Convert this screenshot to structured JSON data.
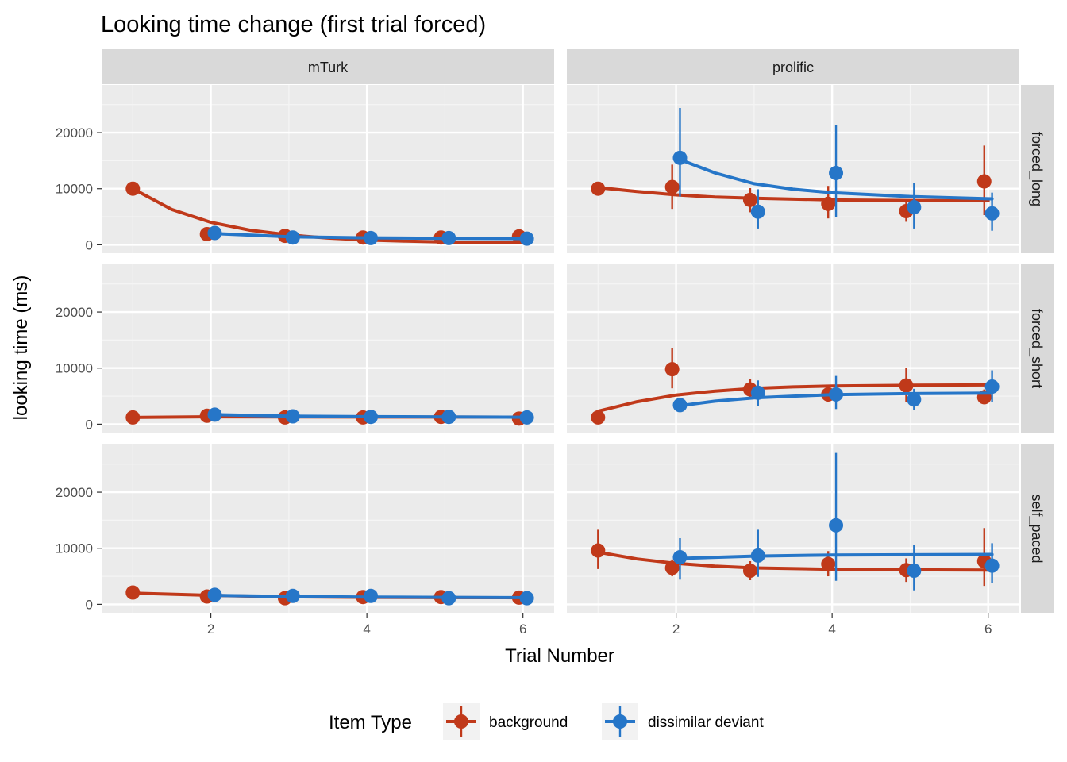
{
  "chart_data": {
    "type": "scatter",
    "title": "Looking time change (first trial forced)",
    "xlabel": "Trial Number",
    "ylabel": "looking time (ms)",
    "xlim": [
      0.6,
      6.4
    ],
    "ylim": [
      -1500,
      28500
    ],
    "x_ticks": [
      2,
      4,
      6
    ],
    "y_ticks": [
      0,
      10000,
      20000
    ],
    "grid": true,
    "legend": {
      "title": "Item Type",
      "position": "bottom",
      "entries": [
        "background",
        "dissimilar deviant"
      ]
    },
    "series_colors": {
      "background": "#C0391A",
      "dissimilar deviant": "#2676C8"
    },
    "col_facets": [
      "mTurk",
      "prolific"
    ],
    "row_facets": [
      "forced_long",
      "forced_short",
      "self_paced"
    ],
    "panels": [
      {
        "col": "mTurk",
        "row": "forced_long",
        "series": [
          {
            "name": "background",
            "x": [
              1,
              1.95,
              2.95,
              3.95,
              4.95,
              5.95
            ],
            "y": [
              10000,
              1900,
              1600,
              1300,
              1300,
              1500
            ],
            "lo": [
              10000,
              1700,
              1400,
              1100,
              1100,
              1300
            ],
            "hi": [
              10000,
              2100,
              1800,
              1500,
              1500,
              1700
            ],
            "curve": [
              [
                1,
                10000
              ],
              [
                1.5,
                6300
              ],
              [
                2,
                4000
              ],
              [
                2.5,
                2600
              ],
              [
                3,
                1750
              ],
              [
                3.5,
                1200
              ],
              [
                4,
                850
              ],
              [
                4.5,
                650
              ],
              [
                5,
                500
              ],
              [
                5.5,
                420
              ],
              [
                6,
                370
              ]
            ]
          },
          {
            "name": "dissimilar deviant",
            "x": [
              2.05,
              3.05,
              4.05,
              5.05,
              6.05
            ],
            "y": [
              2100,
              1300,
              1200,
              1200,
              1100
            ],
            "lo": [
              1900,
              1100,
              1000,
              1000,
              900
            ],
            "hi": [
              2300,
              1500,
              1400,
              1400,
              1300
            ],
            "curve": [
              [
                2.05,
                2000
              ],
              [
                3,
                1450
              ],
              [
                4,
                1250
              ],
              [
                5,
                1150
              ],
              [
                6.05,
                1100
              ]
            ]
          }
        ]
      },
      {
        "col": "prolific",
        "row": "forced_long",
        "series": [
          {
            "name": "background",
            "x": [
              1,
              1.95,
              2.95,
              3.95,
              4.95,
              5.95
            ],
            "y": [
              10000,
              10300,
              8000,
              7300,
              6000,
              11300
            ],
            "lo": [
              10000,
              6400,
              5800,
              4700,
              4100,
              5300
            ],
            "hi": [
              10000,
              14300,
              10100,
              10500,
              7600,
              17700
            ],
            "curve": [
              [
                1,
                10200
              ],
              [
                1.5,
                9500
              ],
              [
                2,
                8900
              ],
              [
                2.5,
                8500
              ],
              [
                3,
                8300
              ],
              [
                4,
                8000
              ],
              [
                5,
                7900
              ],
              [
                6,
                7850
              ]
            ]
          },
          {
            "name": "dissimilar deviant",
            "x": [
              2.05,
              3.05,
              4.05,
              5.05,
              6.05
            ],
            "y": [
              15500,
              5900,
              12800,
              6700,
              5600
            ],
            "lo": [
              8600,
              2900,
              4900,
              2900,
              2500
            ],
            "hi": [
              24400,
              9900,
              21400,
              11000,
              9300
            ],
            "curve": [
              [
                2.05,
                15200
              ],
              [
                2.5,
                12800
              ],
              [
                3,
                10900
              ],
              [
                3.5,
                9900
              ],
              [
                4,
                9300
              ],
              [
                5,
                8600
              ],
              [
                6.05,
                8200
              ]
            ]
          }
        ]
      },
      {
        "col": "mTurk",
        "row": "forced_short",
        "series": [
          {
            "name": "background",
            "x": [
              1,
              1.95,
              2.95,
              3.95,
              4.95,
              5.95
            ],
            "y": [
              1200,
              1500,
              1200,
              1200,
              1300,
              1000
            ],
            "lo": [
              1000,
              1300,
              1000,
              1000,
              1100,
              800
            ],
            "hi": [
              1400,
              1700,
              1400,
              1400,
              1500,
              1200
            ],
            "curve": [
              [
                1,
                1200
              ],
              [
                2,
                1320
              ],
              [
                3,
                1300
              ],
              [
                4,
                1280
              ],
              [
                5,
                1270
              ],
              [
                6,
                1260
              ]
            ]
          },
          {
            "name": "dissimilar deviant",
            "x": [
              2.05,
              3.05,
              4.05,
              5.05,
              6.05
            ],
            "y": [
              1700,
              1400,
              1300,
              1300,
              1200
            ],
            "lo": [
              1500,
              1200,
              1100,
              1100,
              1000
            ],
            "hi": [
              1900,
              1600,
              1500,
              1500,
              1400
            ],
            "curve": [
              [
                2.05,
                1700
              ],
              [
                3,
                1450
              ],
              [
                4,
                1350
              ],
              [
                5,
                1300
              ],
              [
                6.05,
                1250
              ]
            ]
          }
        ]
      },
      {
        "col": "prolific",
        "row": "forced_short",
        "series": [
          {
            "name": "background",
            "x": [
              1,
              1.95,
              2.95,
              3.95,
              4.95,
              5.95
            ],
            "y": [
              1200,
              9800,
              6200,
              5300,
              6900,
              4800
            ],
            "lo": [
              1200,
              6400,
              4500,
              4000,
              3900,
              3800
            ],
            "hi": [
              1200,
              13600,
              8000,
              6700,
              10100,
              6200
            ],
            "curve": [
              [
                1,
                2300
              ],
              [
                1.5,
                4000
              ],
              [
                2,
                5200
              ],
              [
                2.5,
                5900
              ],
              [
                3,
                6400
              ],
              [
                3.5,
                6650
              ],
              [
                4,
                6800
              ],
              [
                5,
                6950
              ],
              [
                6,
                7000
              ]
            ]
          },
          {
            "name": "dissimilar deviant",
            "x": [
              2.05,
              3.05,
              4.05,
              5.05,
              6.05
            ],
            "y": [
              3400,
              5600,
              5300,
              4400,
              6700
            ],
            "lo": [
              3400,
              3300,
              2700,
              2600,
              4000
            ],
            "hi": [
              3400,
              7800,
              8600,
              6300,
              9600
            ],
            "curve": [
              [
                2.05,
                3300
              ],
              [
                2.5,
                4100
              ],
              [
                3,
                4700
              ],
              [
                3.5,
                5000
              ],
              [
                4,
                5250
              ],
              [
                5,
                5450
              ],
              [
                6.05,
                5550
              ]
            ]
          }
        ]
      },
      {
        "col": "mTurk",
        "row": "self_paced",
        "series": [
          {
            "name": "background",
            "x": [
              1,
              1.95,
              2.95,
              3.95,
              4.95,
              5.95
            ],
            "y": [
              2100,
              1400,
              1100,
              1300,
              1300,
              1200
            ],
            "lo": [
              1900,
              1200,
              900,
              1100,
              1100,
              1000
            ],
            "hi": [
              2300,
              1600,
              1300,
              1500,
              1500,
              1400
            ],
            "curve": [
              [
                1,
                2000
              ],
              [
                2,
                1600
              ],
              [
                3,
                1350
              ],
              [
                4,
                1250
              ],
              [
                5,
                1200
              ],
              [
                6,
                1180
              ]
            ]
          },
          {
            "name": "dissimilar deviant",
            "x": [
              2.05,
              3.05,
              4.05,
              5.05,
              6.05
            ],
            "y": [
              1700,
              1500,
              1500,
              1100,
              1100
            ],
            "lo": [
              1500,
              1300,
              1300,
              900,
              900
            ],
            "hi": [
              1900,
              1700,
              1700,
              1300,
              1300
            ],
            "curve": [
              [
                2.05,
                1600
              ],
              [
                3,
                1400
              ],
              [
                4,
                1300
              ],
              [
                5,
                1250
              ],
              [
                6.05,
                1200
              ]
            ]
          }
        ]
      },
      {
        "col": "prolific",
        "row": "self_paced",
        "series": [
          {
            "name": "background",
            "x": [
              1,
              1.95,
              2.95,
              3.95,
              4.95,
              5.95
            ],
            "y": [
              9600,
              6500,
              6000,
              7200,
              6100,
              7700
            ],
            "lo": [
              6300,
              5000,
              4300,
              5000,
              4000,
              3300
            ],
            "hi": [
              13300,
              8000,
              7700,
              9500,
              8200,
              13600
            ],
            "curve": [
              [
                1,
                9300
              ],
              [
                1.5,
                8100
              ],
              [
                2,
                7300
              ],
              [
                2.5,
                6800
              ],
              [
                3,
                6500
              ],
              [
                4,
                6250
              ],
              [
                5,
                6150
              ],
              [
                6,
                6100
              ]
            ]
          },
          {
            "name": "dissimilar deviant",
            "x": [
              2.05,
              3.05,
              4.05,
              5.05,
              6.05
            ],
            "y": [
              8400,
              8700,
              14100,
              6000,
              6900
            ],
            "lo": [
              4400,
              4900,
              4200,
              2500,
              3800
            ],
            "hi": [
              11800,
              13300,
              27000,
              10600,
              10900
            ],
            "curve": [
              [
                2.05,
                8200
              ],
              [
                3,
                8600
              ],
              [
                4,
                8800
              ],
              [
                5,
                8850
              ],
              [
                6.05,
                8900
              ]
            ]
          }
        ]
      }
    ]
  }
}
